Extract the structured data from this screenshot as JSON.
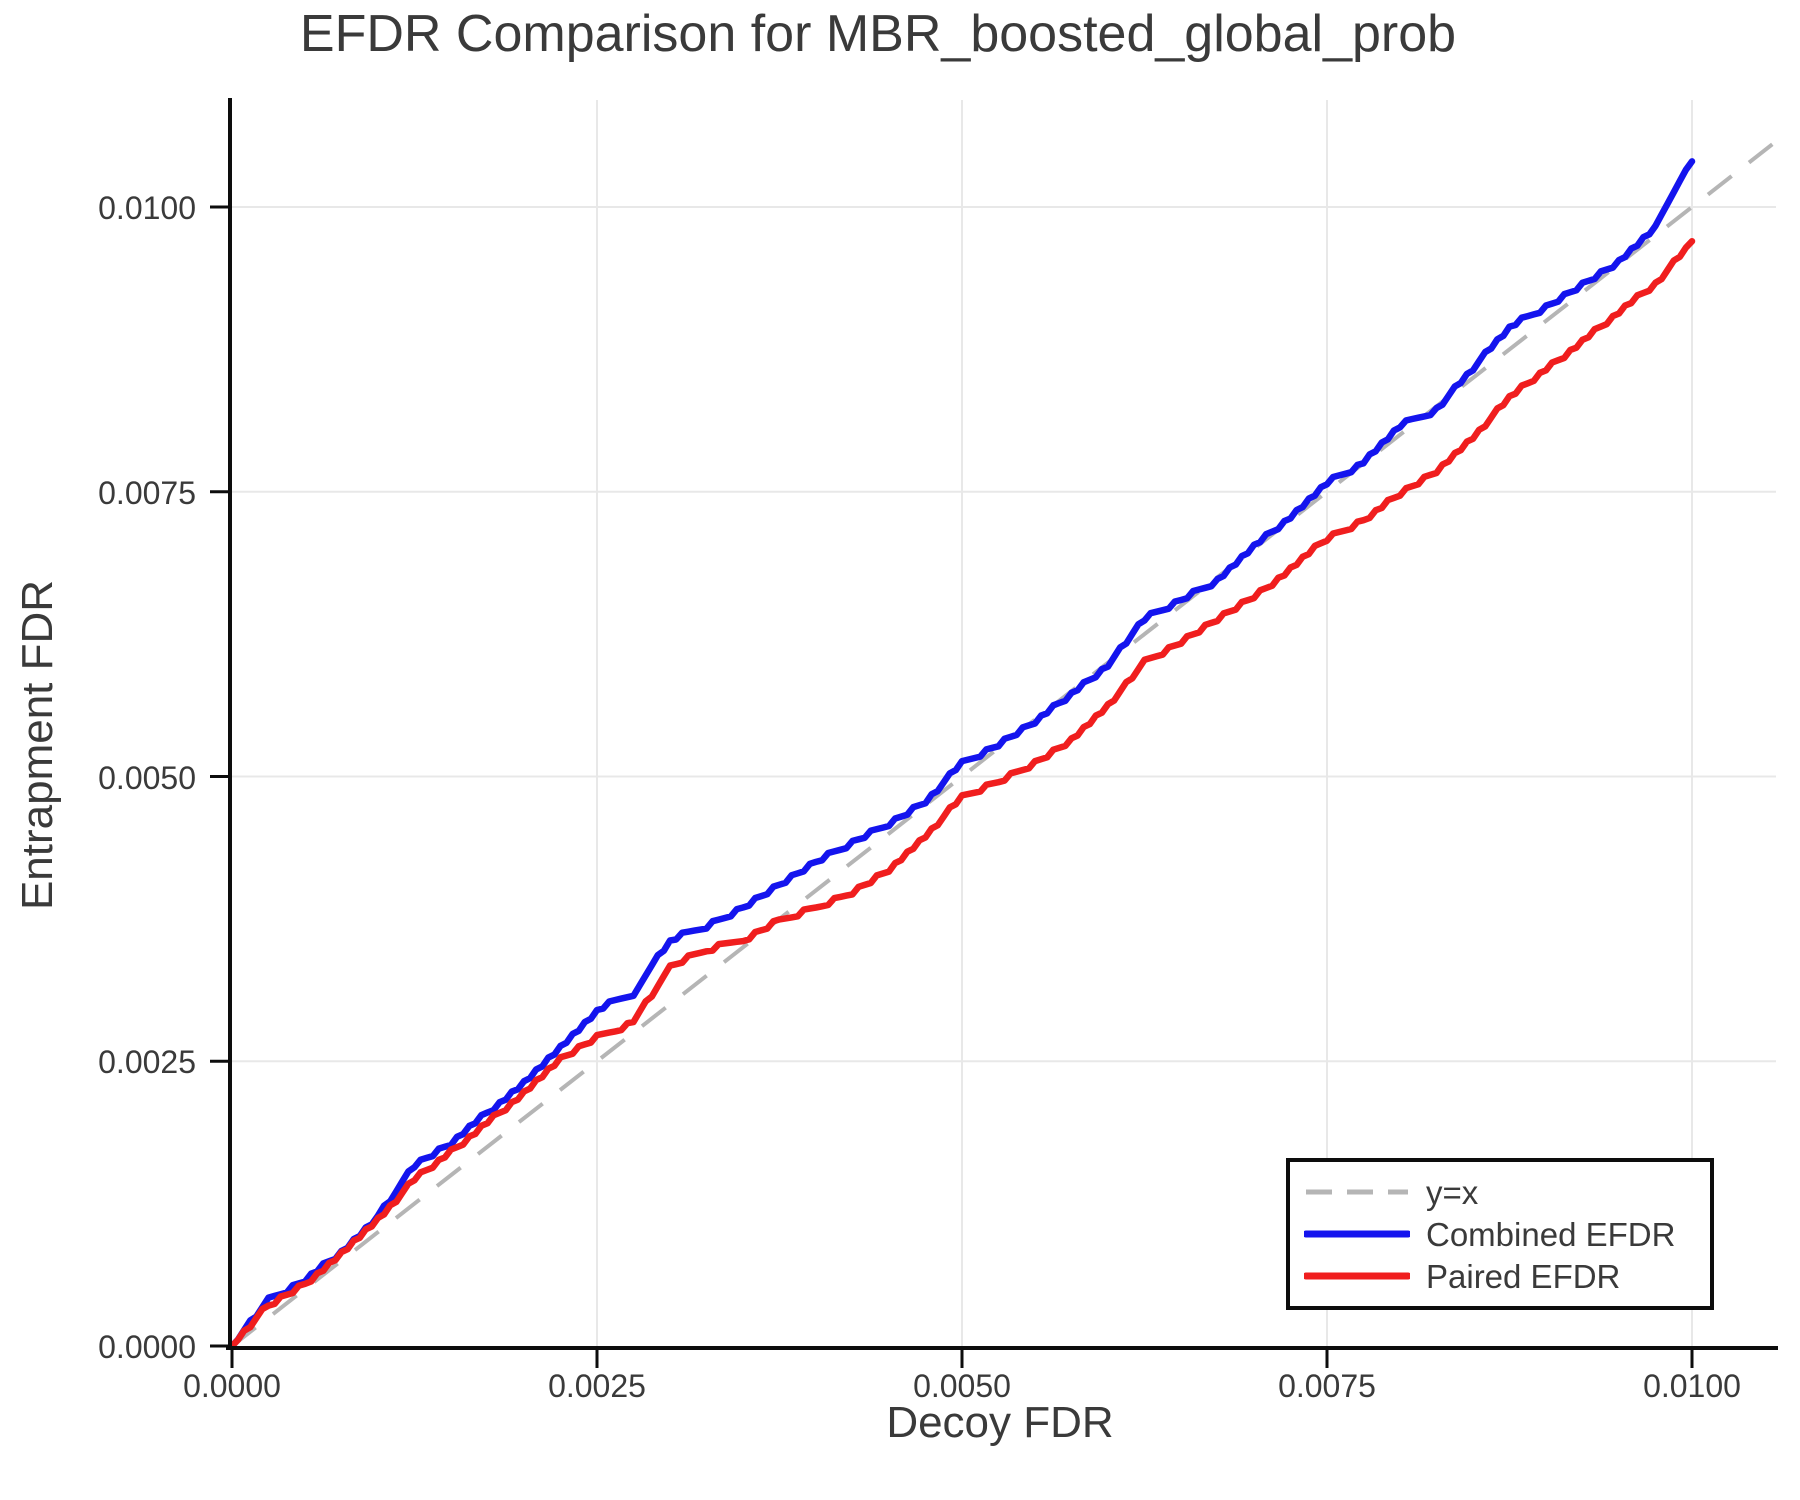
{
  "chart_data": {
    "type": "line",
    "title": "EFDR Comparison for MBR_boosted_global_prob",
    "xlabel": "Decoy FDR",
    "ylabel": "Entrapment FDR",
    "xlim": [
      0.0,
      0.0106
    ],
    "ylim": [
      0.0,
      0.0106
    ],
    "grid": true,
    "legend_position": "bottom-right",
    "xticks": [
      "0.0000",
      "0.0025",
      "0.0050",
      "0.0075",
      "0.0100"
    ],
    "yticks": [
      "0.0000",
      "0.0025",
      "0.0050",
      "0.0075",
      "0.0100"
    ],
    "colors": {
      "identity_line": "#b5b5b5",
      "combined_efdr": "#1414ee",
      "paired_efdr": "#f01e1e",
      "gridline": "#e8e8e8",
      "axis": "#0d0d0d",
      "text": "#3a3a3a"
    },
    "series": [
      {
        "name": "y=x",
        "style": "dashed",
        "color": "#b5b5b5",
        "x": [
          0.0,
          0.01055
        ],
        "y": [
          0.0,
          0.01055
        ]
      },
      {
        "name": "Combined EFDR",
        "style": "solid",
        "color": "#1414ee",
        "x": [
          0.0,
          0.00025,
          0.0005,
          0.00075,
          0.001,
          0.00125,
          0.0015,
          0.00175,
          0.002,
          0.00225,
          0.0025,
          0.00275,
          0.003,
          0.00325,
          0.0035,
          0.00375,
          0.004,
          0.00425,
          0.0045,
          0.00475,
          0.005,
          0.00525,
          0.0055,
          0.00575,
          0.006,
          0.00625,
          0.0065,
          0.00675,
          0.007,
          0.00725,
          0.0075,
          0.00775,
          0.008,
          0.00825,
          0.0085,
          0.00875,
          0.009,
          0.00925,
          0.0095,
          0.00975,
          0.01
        ],
        "y": [
          0.0,
          0.0004,
          0.00058,
          0.00082,
          0.00114,
          0.00159,
          0.00178,
          0.00205,
          0.0023,
          0.00262,
          0.00295,
          0.0031,
          0.00357,
          0.00368,
          0.00385,
          0.00405,
          0.00425,
          0.00442,
          0.00458,
          0.00478,
          0.00512,
          0.00528,
          0.00548,
          0.00572,
          0.00598,
          0.00639,
          0.00655,
          0.00672,
          0.00702,
          0.00728,
          0.00758,
          0.00775,
          0.00808,
          0.00822,
          0.00858,
          0.00895,
          0.00912,
          0.00932,
          0.00952,
          0.00982,
          0.0104
        ]
      },
      {
        "name": "Paired EFDR",
        "style": "solid",
        "color": "#f01e1e",
        "x": [
          0.0,
          0.00025,
          0.0005,
          0.00075,
          0.001,
          0.00125,
          0.0015,
          0.00175,
          0.002,
          0.00225,
          0.0025,
          0.00275,
          0.003,
          0.00325,
          0.0035,
          0.00375,
          0.004,
          0.00425,
          0.0045,
          0.00475,
          0.005,
          0.00525,
          0.0055,
          0.00575,
          0.006,
          0.00625,
          0.0065,
          0.00675,
          0.007,
          0.00725,
          0.0075,
          0.00775,
          0.008,
          0.00825,
          0.0085,
          0.00875,
          0.009,
          0.00925,
          0.0095,
          0.00975,
          0.01
        ],
        "y": [
          0.0,
          0.00036,
          0.00054,
          0.0008,
          0.0011,
          0.00146,
          0.0017,
          0.00196,
          0.00222,
          0.00252,
          0.00271,
          0.00284,
          0.00333,
          0.00348,
          0.00356,
          0.00374,
          0.00385,
          0.00398,
          0.00418,
          0.00448,
          0.00482,
          0.00495,
          0.00512,
          0.00532,
          0.00562,
          0.006,
          0.00618,
          0.00638,
          0.00658,
          0.00682,
          0.00709,
          0.00725,
          0.00748,
          0.00768,
          0.00798,
          0.00833,
          0.00858,
          0.00882,
          0.00908,
          0.00932,
          0.0097
        ]
      }
    ]
  }
}
